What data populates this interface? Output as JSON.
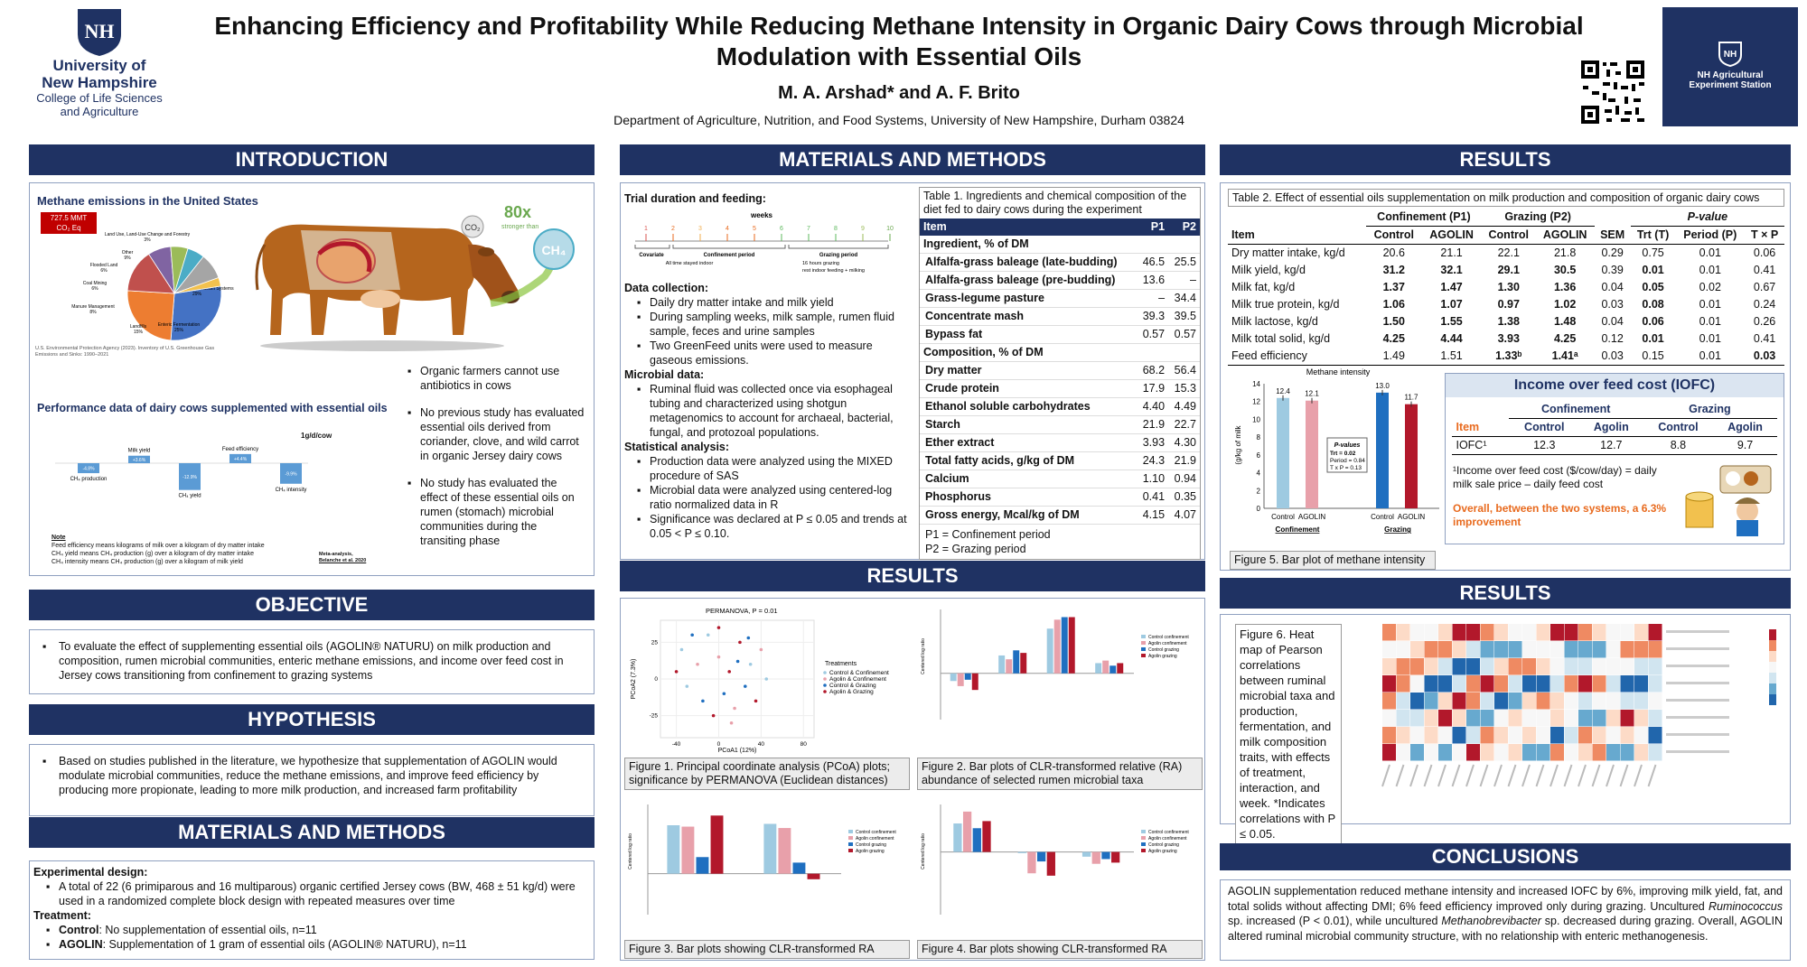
{
  "header": {
    "title_line1": "Enhancing Efficiency and Profitability While Reducing Methane Intensity in Organic Dairy Cows through Microbial",
    "title_line2": "Modulation with Essential Oils",
    "authors": "M. A. Arshad* and A. F. Brito",
    "affiliation": "Department of Agriculture, Nutrition, and Food Systems, University of New Hampshire, Durham 03824",
    "unh_line1": "University of",
    "unh_line2": "New Hampshire",
    "college_line1": "College of Life Sciences",
    "college_line2": "and Agriculture",
    "station_line1": "NH Agricultural",
    "station_line2": "Experiment Station",
    "colors": {
      "navy": "#1f3263",
      "orange": "#e86a1e"
    }
  },
  "intro": {
    "banner": "INTRODUCTION",
    "pie_title": "Methane emissions in the United States",
    "pie_badge_1": "727.5 MMT",
    "pie_badge_2": "CO₂ Eq",
    "pie_source": "U.S. Environmental Protection Agency (2023). Inventory of U.S. Greenhouse Gas Emissions and Sinks: 1990–2021",
    "cow_badge": "80x",
    "cow_badge_sub": "stronger than",
    "co2": "CO₂",
    "ch4": "CH₄",
    "pie": [
      {
        "label": "Natural Gas and Petroleum Systems",
        "pct": "29%",
        "value": 29,
        "color": "#4472c4"
      },
      {
        "label": "Enteric Fermentation",
        "pct": "25%",
        "value": 25,
        "color": "#ed7d31"
      },
      {
        "label": "Landfills",
        "pct": "15%",
        "value": 15,
        "color": "#c0504d"
      },
      {
        "label": "Manure Management",
        "pct": "8%",
        "value": 8,
        "color": "#8064a2"
      },
      {
        "label": "Coal Mining",
        "pct": "6%",
        "value": 6,
        "color": "#9bbb59"
      },
      {
        "label": "Flooded Land",
        "pct": "6%",
        "value": 6,
        "color": "#4bacc6"
      },
      {
        "label": "Other",
        "pct": "9%",
        "value": 9,
        "color": "#a5a5a5"
      },
      {
        "label": "Land Use, Land-Use Change and Forestry",
        "pct": "3%",
        "value": 3,
        "color": "#f2c14e"
      }
    ],
    "perf_title": "Performance data of dairy cows supplemented with essential oils",
    "perf_unit": "1g/d/cow",
    "perf": [
      {
        "label": "CH₄ production",
        "value": -4.8
      },
      {
        "label": "Milk yield",
        "value": 3.6
      },
      {
        "label": "CH₄ yield",
        "value": -12.9
      },
      {
        "label": "Feed efficiency",
        "value": 4.4
      },
      {
        "label": "CH₄ intensity",
        "value": -9.9
      }
    ],
    "perf_values": [
      "-4.8%",
      "+3.6%",
      "-12.9%",
      "+4.4%",
      "-9.9%"
    ],
    "note_title": "Note",
    "notes": [
      "Feed efficiency means kilograms of milk over a kilogram of dry matter intake",
      "CH₄ yield means CH₄ production (g) over a kilogram of dry matter intake",
      "CH₄ intensity means CH₄ production (g) over a kilogram of milk yield"
    ],
    "meta_1": "Meta-analysis,",
    "meta_2": "Belanche et al. 2020",
    "bullets": [
      "Organic farmers cannot use antibiotics in cows",
      "No previous study has evaluated essential oils derived from coriander, clove, and wild carrot in organic Jersey dairy cows",
      "No study has evaluated the effect of these essential oils on rumen (stomach) microbial communities during the transiting phase"
    ]
  },
  "objective": {
    "banner": "OBJECTIVE",
    "text": "To evaluate the effect of supplementing essential oils (AGOLIN® NATURU) on milk production and composition, rumen microbial communities, enteric methane emissions, and income over feed cost in Jersey cows transitioning from confinement to grazing systems"
  },
  "hypothesis": {
    "banner": "HYPOTHESIS",
    "text": "Based on studies published in the literature, we hypothesize that supplementation of AGOLIN would modulate microbial communities, reduce the methane emissions, and improve feed efficiency by producing more propionate, leading to more milk production, and increased farm profitability"
  },
  "mm_left": {
    "banner": "MATERIALS AND METHODS",
    "design_h": "Experimental design:",
    "design": "A total of 22 (6 primiparous and 16 multiparous) organic certified Jersey cows (BW, 468 ± 51 kg/d) were used in a randomized complete block design with repeated measures over time",
    "treat_h": "Treatment:",
    "control_b": "Control",
    "control": ": No supplementation of essential oils, n=11",
    "agolin_b": "AGOLIN",
    "agolin": ": Supplementation of 1 gram of essential oils (AGOLIN® NATURU), n=11"
  },
  "mm_center": {
    "banner": "MATERIALS AND METHODS",
    "trial_h": "Trial duration and feeding:",
    "weeks_label": "weeks",
    "weeks": [
      "1",
      "2",
      "3",
      "4",
      "5",
      "6",
      "7",
      "8",
      "9",
      "10"
    ],
    "tl_covariate": "Covariate",
    "tl_confinement": "Confinement period",
    "tl_grazing": "Grazing period",
    "tl_indoor": "All time stayed indoor",
    "tl_g1": "16 hours grazing",
    "tl_g2": "rest indoor feeding + milking",
    "collection_h": "Data collection:",
    "collection": [
      "Daily dry matter intake and milk yield",
      "During sampling weeks, milk sample, rumen fluid sample, feces and urine samples",
      "Two GreenFeed units were used to measure gaseous emissions."
    ],
    "micro_h": "Microbial data:",
    "micro": [
      "Ruminal fluid was collected once via esophageal tubing and characterized using shotgun metagenomics to account for archaeal, bacterial, fungal, and protozoal populations."
    ],
    "stat_h": "Statistical analysis:",
    "stat": [
      "Production data were analyzed using the MIXED procedure of SAS",
      "Microbial data were analyzed using centered-log ratio normalized data in R",
      "Significance was declared at P ≤ 0.05 and trends at 0.05 < P ≤ 0.10."
    ],
    "table1_caption": "Table 1. Ingredients and chemical composition of the diet fed to dairy cows during the experiment",
    "table1_head": [
      "Item",
      "P1",
      "P2"
    ],
    "table1": [
      {
        "item": "Ingredient, % of DM",
        "p1": "",
        "p2": "",
        "section": true
      },
      {
        "item": "Alfalfa-grass baleage (late-budding)",
        "p1": "46.5",
        "p2": "25.5"
      },
      {
        "item": "Alfalfa-grass baleage (pre-budding)",
        "p1": "13.6",
        "p2": "–"
      },
      {
        "item": "Grass-legume pasture",
        "p1": "–",
        "p2": "34.4"
      },
      {
        "item": "Concentrate mash",
        "p1": "39.3",
        "p2": "39.5"
      },
      {
        "item": "Bypass fat",
        "p1": "0.57",
        "p2": "0.57"
      },
      {
        "item": "Composition, % of DM",
        "p1": "",
        "p2": "",
        "section": true
      },
      {
        "item": "Dry matter",
        "p1": "68.2",
        "p2": "56.4"
      },
      {
        "item": "Crude protein",
        "p1": "17.9",
        "p2": "15.3"
      },
      {
        "item": "Ethanol soluble carbohydrates",
        "p1": "4.40",
        "p2": "4.49"
      },
      {
        "item": "Starch",
        "p1": "21.9",
        "p2": "22.7"
      },
      {
        "item": "Ether extract",
        "p1": "3.93",
        "p2": "4.30"
      },
      {
        "item": "Total fatty acids, g/kg of DM",
        "p1": "24.3",
        "p2": "21.9"
      },
      {
        "item": "Calcium",
        "p1": "1.10",
        "p2": "0.94"
      },
      {
        "item": "Phosphorus",
        "p1": "0.41",
        "p2": "0.35"
      },
      {
        "item": "Gross energy, Mcal/kg of DM",
        "p1": "4.15",
        "p2": "4.07"
      }
    ],
    "p1_note": "P1 = Confinement period",
    "p2_note": "P2 = Grazing period"
  },
  "results_center": {
    "banner": "RESULTS",
    "pcoa_title": "PERMANOVA, P = 0.01",
    "pcoa_ylabel": "PCoA2 (7.3%)",
    "pcoa_xlabel": "PCoA1 (12%)",
    "pcoa_xticks": [
      "-40",
      "0",
      "40",
      "80"
    ],
    "pcoa_yticks": [
      "25",
      "0",
      "-25"
    ],
    "legend_title": "Treatments",
    "legend": [
      "Control & Confinement",
      "Agolin & Confinement",
      "Control & Grazing",
      "Agolin & Grazing"
    ],
    "legend_small": [
      "Control confinement",
      "Agolin confinement",
      "Control grazing",
      "Agolin grazing"
    ],
    "ylabel_clr": "Centered log ratio",
    "fig1": "Figure 1. Principal coordinate analysis (PCoA) plots; significance by PERMANOVA (Euclidean distances)",
    "fig2": "Figure 2. Bar plots of CLR-transformed relative (RA) abundance of selected rumen microbial taxa",
    "fig3": "Figure 3. Bar plots showing CLR-transformed RA",
    "fig4": "Figure 4. Bar plots showing CLR-transformed RA",
    "group_colors": [
      "#9ecae1",
      "#e8a0aa",
      "#1f6fc0",
      "#b2182b"
    ]
  },
  "results_right": {
    "banner": "RESULTS",
    "table2_caption": "Table 2. Effect of essential oils supplementation on milk production and composition of organic dairy cows",
    "head_conf": "Confinement (P1)",
    "head_graz": "Grazing (P2)",
    "head_p": "P-value",
    "cols": [
      "Item",
      "Control",
      "AGOLIN",
      "Control",
      "AGOLIN",
      "SEM",
      "Trt (T)",
      "Period (P)",
      "T × P"
    ],
    "table2": [
      {
        "item": "Dry matter intake, kg/d",
        "v": [
          "20.6",
          "21.1",
          "22.1",
          "21.8",
          "0.29",
          "0.75",
          "0.01",
          "0.06"
        ]
      },
      {
        "item": "Milk yield, kg/d",
        "v": [
          "31.2",
          "32.1",
          "29.1",
          "30.5",
          "0.39",
          "0.01",
          "0.01",
          "0.41"
        ],
        "bold": [
          0,
          1,
          2,
          3,
          5
        ]
      },
      {
        "item": "Milk fat, kg/d",
        "v": [
          "1.37",
          "1.47",
          "1.30",
          "1.36",
          "0.04",
          "0.05",
          "0.02",
          "0.67"
        ],
        "bold": [
          0,
          1,
          2,
          3,
          5
        ]
      },
      {
        "item": "Milk true protein, kg/d",
        "v": [
          "1.06",
          "1.07",
          "0.97",
          "1.02",
          "0.03",
          "0.08",
          "0.01",
          "0.24"
        ],
        "bold": [
          0,
          1,
          2,
          3,
          5
        ]
      },
      {
        "item": "Milk lactose, kg/d",
        "v": [
          "1.50",
          "1.55",
          "1.38",
          "1.48",
          "0.04",
          "0.06",
          "0.01",
          "0.26"
        ],
        "bold": [
          0,
          1,
          2,
          3,
          5
        ]
      },
      {
        "item": "Milk total solid, kg/d",
        "v": [
          "4.25",
          "4.44",
          "3.93",
          "4.25",
          "0.12",
          "0.01",
          "0.01",
          "0.41"
        ],
        "bold": [
          0,
          1,
          2,
          3,
          5
        ]
      },
      {
        "item": "Feed efficiency",
        "v": [
          "1.49",
          "1.51",
          "1.33ᵇ",
          "1.41ᵃ",
          "0.03",
          "0.15",
          "0.01",
          "0.03"
        ],
        "bold": [
          2,
          3,
          7
        ]
      }
    ],
    "methane": {
      "title": "Methane intensity",
      "ylabel": "(g/kg of milk",
      "yticks": [
        "14",
        "12",
        "10",
        "8",
        "6",
        "4",
        "2",
        "0"
      ],
      "values": [
        12.4,
        12.1,
        13.0,
        11.7
      ],
      "labels": [
        "12.4",
        "12.1",
        "13.0",
        "11.7"
      ],
      "xlabels": [
        "Control",
        "AGOLIN",
        "Control",
        "AGOLIN"
      ],
      "group1": "Confinement",
      "group2": "Grazing",
      "pbox_title": "P-values",
      "pbox_trt": "Trt = 0.02",
      "pbox_period": "Period = 0.84",
      "pbox_txp": "T x P = 0.13",
      "colors": [
        "#9ecae1",
        "#e8a0aa",
        "#1f6fc0",
        "#b2182b"
      ]
    },
    "fig5": "Figure 5. Bar plot of methane intensity",
    "iofc": {
      "title": "Income over feed cost (IOFC)",
      "group1": "Confinement",
      "group2": "Grazing",
      "item": "Item",
      "cols": [
        "Control",
        "Agolin",
        "Control",
        "Agolin"
      ],
      "row_label": "IOFC¹",
      "values": [
        "12.3",
        "12.7",
        "8.8",
        "9.7"
      ],
      "footnote": "¹Income over feed cost ($/cow/day) = daily milk sale price – daily feed cost",
      "summary": "Overall, between the two systems, a 6.3% improvement"
    },
    "results2_banner": "RESULTS",
    "fig6": "Figure 6. Heat map of Pearson correlations between ruminal microbial taxa and production, fermentation, and milk composition traits, with effects of treatment, interaction, and week. *Indicates correlations with P ≤ 0.05.",
    "conclusions_banner": "CONCLUSIONS",
    "conclusion_1": "AGOLIN supplementation reduced methane intensity and increased IOFC by 6%, improving milk yield, fat, and total solids without affecting DMI; 6% feed efficiency improved only during grazing. Uncultured ",
    "conclusion_2": "Ruminococcus",
    "conclusion_3": " sp. increased (P < 0.01), while uncultured ",
    "conclusion_4": "Methanobrevibacter",
    "conclusion_5": " sp. decreased during grazing. Overall, AGOLIN altered ruminal microbial community structure, with no relationship with enteric methanogenesis."
  }
}
